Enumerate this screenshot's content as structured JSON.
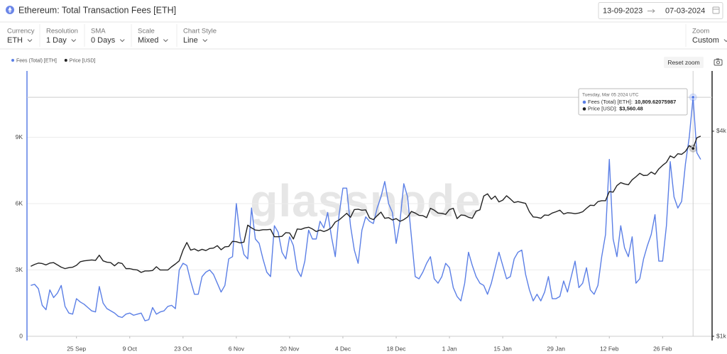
{
  "header": {
    "title": "Ethereum: Total Transaction Fees [ETH]",
    "date_start": "13-09-2023",
    "date_end": "07-03-2024"
  },
  "controls": [
    {
      "label": "Currency",
      "value": "ETH"
    },
    {
      "label": "Resolution",
      "value": "1 Day"
    },
    {
      "label": "SMA",
      "value": "0 Days"
    },
    {
      "label": "Scale",
      "value": "Mixed"
    },
    {
      "label": "Chart Style",
      "value": "Line"
    },
    {
      "label": "Zoom",
      "value": "Custom"
    }
  ],
  "reset_zoom": "Reset zoom",
  "chart_data": {
    "type": "line",
    "watermark": "glassnode",
    "grid": true,
    "x": [
      "2023-09-13",
      "2023-09-14",
      "2023-09-15",
      "2023-09-16",
      "2023-09-17",
      "2023-09-18",
      "2023-09-19",
      "2023-09-20",
      "2023-09-21",
      "2023-09-22",
      "2023-09-23",
      "2023-09-24",
      "2023-09-25",
      "2023-09-26",
      "2023-09-27",
      "2023-09-28",
      "2023-09-29",
      "2023-09-30",
      "2023-10-01",
      "2023-10-02",
      "2023-10-03",
      "2023-10-04",
      "2023-10-05",
      "2023-10-06",
      "2023-10-07",
      "2023-10-08",
      "2023-10-09",
      "2023-10-10",
      "2023-10-11",
      "2023-10-12",
      "2023-10-13",
      "2023-10-14",
      "2023-10-15",
      "2023-10-16",
      "2023-10-17",
      "2023-10-18",
      "2023-10-19",
      "2023-10-20",
      "2023-10-21",
      "2023-10-22",
      "2023-10-23",
      "2023-10-24",
      "2023-10-25",
      "2023-10-26",
      "2023-10-27",
      "2023-10-28",
      "2023-10-29",
      "2023-10-30",
      "2023-10-31",
      "2023-11-01",
      "2023-11-02",
      "2023-11-03",
      "2023-11-04",
      "2023-11-05",
      "2023-11-06",
      "2023-11-07",
      "2023-11-08",
      "2023-11-09",
      "2023-11-10",
      "2023-11-11",
      "2023-11-12",
      "2023-11-13",
      "2023-11-14",
      "2023-11-15",
      "2023-11-16",
      "2023-11-17",
      "2023-11-18",
      "2023-11-19",
      "2023-11-20",
      "2023-11-21",
      "2023-11-22",
      "2023-11-23",
      "2023-11-24",
      "2023-11-25",
      "2023-11-26",
      "2023-11-27",
      "2023-11-28",
      "2023-11-29",
      "2023-11-30",
      "2023-12-01",
      "2023-12-02",
      "2023-12-03",
      "2023-12-04",
      "2023-12-05",
      "2023-12-06",
      "2023-12-07",
      "2023-12-08",
      "2023-12-09",
      "2023-12-10",
      "2023-12-11",
      "2023-12-12",
      "2023-12-13",
      "2023-12-14",
      "2023-12-15",
      "2023-12-16",
      "2023-12-17",
      "2023-12-18",
      "2023-12-19",
      "2023-12-20",
      "2023-12-21",
      "2023-12-22",
      "2023-12-23",
      "2023-12-24",
      "2023-12-25",
      "2023-12-26",
      "2023-12-27",
      "2023-12-28",
      "2023-12-29",
      "2023-12-30",
      "2023-12-31",
      "2024-01-01",
      "2024-01-02",
      "2024-01-03",
      "2024-01-04",
      "2024-01-05",
      "2024-01-06",
      "2024-01-07",
      "2024-01-08",
      "2024-01-09",
      "2024-01-10",
      "2024-01-11",
      "2024-01-12",
      "2024-01-13",
      "2024-01-14",
      "2024-01-15",
      "2024-01-16",
      "2024-01-17",
      "2024-01-18",
      "2024-01-19",
      "2024-01-20",
      "2024-01-21",
      "2024-01-22",
      "2024-01-23",
      "2024-01-24",
      "2024-01-25",
      "2024-01-26",
      "2024-01-27",
      "2024-01-28",
      "2024-01-29",
      "2024-01-30",
      "2024-01-31",
      "2024-02-01",
      "2024-02-02",
      "2024-02-03",
      "2024-02-04",
      "2024-02-05",
      "2024-02-06",
      "2024-02-07",
      "2024-02-08",
      "2024-02-09",
      "2024-02-10",
      "2024-02-11",
      "2024-02-12",
      "2024-02-13",
      "2024-02-14",
      "2024-02-15",
      "2024-02-16",
      "2024-02-17",
      "2024-02-18",
      "2024-02-19",
      "2024-02-20",
      "2024-02-21",
      "2024-02-22",
      "2024-02-23",
      "2024-02-24",
      "2024-02-25",
      "2024-02-26",
      "2024-02-27",
      "2024-02-28",
      "2024-02-29",
      "2024-03-01",
      "2024-03-02",
      "2024-03-03",
      "2024-03-04",
      "2024-03-05",
      "2024-03-06",
      "2024-03-07"
    ],
    "series": [
      {
        "name": "Fees (Total) [ETH]",
        "color": "#5b7fe6",
        "axis": "y",
        "values": [
          2300,
          2350,
          2150,
          1400,
          1200,
          2100,
          1750,
          1950,
          2300,
          1350,
          1050,
          1000,
          1700,
          1550,
          1450,
          1300,
          1150,
          1100,
          2250,
          1500,
          1250,
          1150,
          1050,
          900,
          850,
          1000,
          1050,
          950,
          1000,
          1050,
          700,
          750,
          1300,
          1000,
          1100,
          1150,
          1350,
          1400,
          1250,
          3000,
          3300,
          3200,
          2500,
          1900,
          1900,
          2700,
          2900,
          3000,
          2800,
          2400,
          2000,
          2300,
          3500,
          3600,
          6000,
          4500,
          3700,
          3500,
          5800,
          4400,
          4200,
          3500,
          2900,
          2700,
          5000,
          4700,
          3800,
          3500,
          4500,
          4100,
          3000,
          2700,
          3400,
          4800,
          4400,
          4400,
          5200,
          4900,
          5600,
          4500,
          3600,
          5500,
          6700,
          6700,
          5000,
          3900,
          3300,
          4800,
          5400,
          5200,
          5100,
          5800,
          6300,
          7000,
          6000,
          5600,
          4200,
          5200,
          6900,
          6300,
          4500,
          2700,
          2600,
          2900,
          3300,
          3600,
          2600,
          2400,
          2700,
          3300,
          3100,
          2200,
          1800,
          1600,
          2400,
          3800,
          3200,
          2700,
          2400,
          2300,
          1900,
          2400,
          3100,
          3800,
          3200,
          2600,
          2700,
          3500,
          3800,
          3900,
          2800,
          2100,
          1600,
          1900,
          1600,
          2000,
          2700,
          1700,
          1700,
          1800,
          2500,
          2000,
          2700,
          3400,
          2200,
          2400,
          3100,
          2100,
          1900,
          2300,
          3600,
          4600,
          8000,
          4400,
          3600,
          5000,
          4000,
          3600,
          4500,
          2400,
          2600,
          3500,
          4100,
          4600,
          5500,
          3400,
          3400,
          5000,
          7900,
          6300,
          5800,
          6100,
          7800,
          9000,
          10809.62075987,
          8300,
          8000
        ]
      },
      {
        "name": "Price [USD]",
        "color": "#222222",
        "axis": "y2",
        "values": [
          1605,
          1625,
          1640,
          1635,
          1620,
          1640,
          1645,
          1620,
          1595,
          1580,
          1590,
          1595,
          1615,
          1655,
          1665,
          1670,
          1675,
          1670,
          1730,
          1665,
          1650,
          1645,
          1610,
          1645,
          1635,
          1580,
          1580,
          1570,
          1565,
          1540,
          1555,
          1555,
          1560,
          1600,
          1565,
          1565,
          1565,
          1600,
          1630,
          1665,
          1790,
          1885,
          1790,
          1805,
          1780,
          1800,
          1785,
          1810,
          1815,
          1845,
          1795,
          1830,
          1835,
          1900,
          1895,
          1880,
          1890,
          2120,
          2080,
          2050,
          2045,
          2055,
          2055,
          2060,
          1960,
          1960,
          1965,
          2015,
          2010,
          1930,
          2065,
          2060,
          2080,
          2090,
          2065,
          2030,
          2050,
          2030,
          2050,
          2085,
          2165,
          2195,
          2245,
          2295,
          2235,
          2355,
          2360,
          2345,
          2350,
          2225,
          2200,
          2260,
          2315,
          2220,
          2230,
          2195,
          2215,
          2175,
          2200,
          2240,
          2325,
          2300,
          2265,
          2260,
          2230,
          2375,
          2345,
          2300,
          2295,
          2280,
          2355,
          2375,
          2215,
          2270,
          2265,
          2235,
          2220,
          2330,
          2350,
          2580,
          2620,
          2525,
          2580,
          2480,
          2510,
          2585,
          2530,
          2470,
          2485,
          2470,
          2455,
          2320,
          2240,
          2235,
          2220,
          2270,
          2265,
          2300,
          2320,
          2345,
          2285,
          2305,
          2300,
          2290,
          2300,
          2320,
          2375,
          2425,
          2420,
          2485,
          2500,
          2500,
          2660,
          2650,
          2770,
          2825,
          2800,
          2785,
          2880,
          2940,
          3010,
          2965,
          2970,
          3035,
          2990,
          3100,
          3175,
          3240,
          3385,
          3340,
          3435,
          3420,
          3490,
          3630,
          3560.48,
          3825,
          3870
        ]
      }
    ],
    "xlim": [
      "2023-09-12",
      "2024-03-10"
    ],
    "xticks": [
      {
        "value": "2023-09-25",
        "label": "25 Sep"
      },
      {
        "value": "2023-10-09",
        "label": "9 Oct"
      },
      {
        "value": "2023-10-23",
        "label": "23 Oct"
      },
      {
        "value": "2023-11-06",
        "label": "6 Nov"
      },
      {
        "value": "2023-11-20",
        "label": "20 Nov"
      },
      {
        "value": "2023-12-04",
        "label": "4 Dec"
      },
      {
        "value": "2023-12-18",
        "label": "18 Dec"
      },
      {
        "value": "2024-01-01",
        "label": "1 Jan"
      },
      {
        "value": "2024-01-15",
        "label": "15 Jan"
      },
      {
        "value": "2024-01-29",
        "label": "29 Jan"
      },
      {
        "value": "2024-02-12",
        "label": "12 Feb"
      },
      {
        "value": "2024-02-26",
        "label": "26 Feb"
      }
    ],
    "ylim": [
      0,
      11680
    ],
    "yticks": [
      0,
      {
        "value": 3000,
        "label": "3K"
      },
      {
        "value": 6000,
        "label": "6K"
      },
      {
        "value": 9000,
        "label": "9K"
      }
    ],
    "y2lim": [
      1000,
      5730
    ],
    "y2scale": "log",
    "y2ticks": [
      {
        "value": 1000,
        "label": "$1k"
      },
      {
        "value": 4000,
        "label": "$4k"
      }
    ],
    "tooltip": {
      "x": "2024-03-05",
      "date": "Tuesday, Mar 05 2024 UTC",
      "rows": [
        {
          "label": "Fees (Total) [ETH]:",
          "value_label": "10,809.62075987"
        },
        {
          "label": "Price [USD]:",
          "value_label": "$3,560.48"
        }
      ]
    }
  }
}
